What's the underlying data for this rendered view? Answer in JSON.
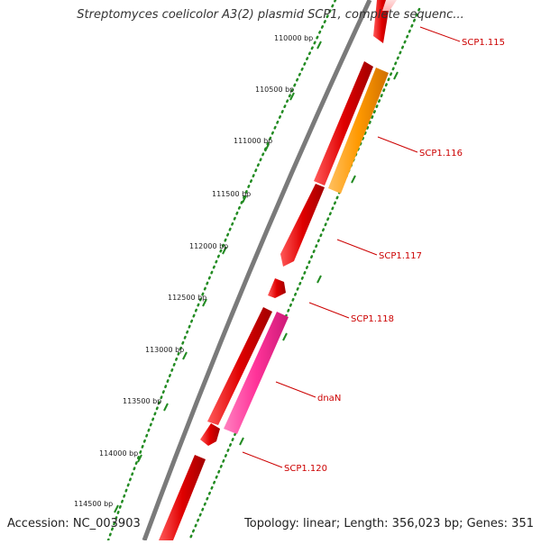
{
  "header": {
    "title": "Streptomyces coelicolor A3(2) plasmid SCP1, complete sequenc..."
  },
  "footer": {
    "accession": "Accession: NC_003903",
    "info": "Topology: linear; Length: 356,023 bp; Genes: 351"
  },
  "ticks": [
    "110000 bp",
    "110500 bp",
    "111000 bp",
    "111500 bp",
    "112000 bp",
    "112500 bp",
    "113000 bp",
    "113500 bp",
    "114000 bp",
    "114500 bp"
  ],
  "genes": [
    "SCP1.115",
    "SCP1.116",
    "SCP1.117",
    "SCP1.118",
    "dnaN",
    "SCP1.120"
  ],
  "colors": {
    "forward_gene": "#e00000",
    "orange_gene": "#ff9900",
    "pink_gene": "#ff3399",
    "backbone": "#808080",
    "tick_marks": "#228b22",
    "label_line": "#cc0000"
  }
}
